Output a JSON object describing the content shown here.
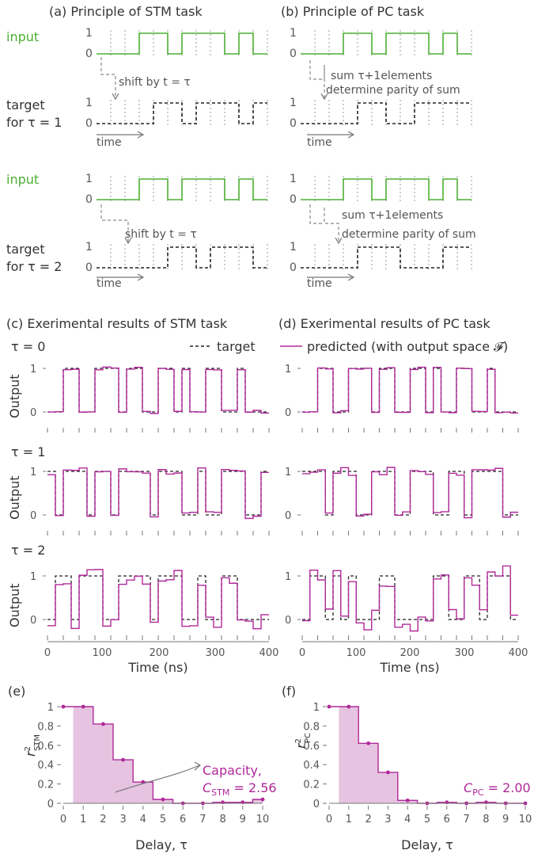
{
  "panel_a": {
    "title": "(a)  Principle of STM task",
    "input_label": "input",
    "target_label_1": "target",
    "target_label_1b": "for τ = 1",
    "target_label_2": "target",
    "target_label_2b": "for τ = 2",
    "shift_text": "shift by t = τ",
    "time_label": "time",
    "one": "1",
    "zero": "0"
  },
  "panel_b": {
    "title": "(b)  Principle of PC task",
    "sum_text": "sum τ+1elements",
    "parity_text": "determine parity of sum",
    "time_label": "time"
  },
  "colors": {
    "input": "#4caf32",
    "target": "#222222",
    "predicted": "#b0289a",
    "capacity_fill": "#e6c3e0"
  },
  "panel_c": {
    "title": "(c) Exerimental results of STM task"
  },
  "panel_d": {
    "title": "(d) Exerimental results of PC task"
  },
  "legend": {
    "target": "target",
    "predicted": "predicted (with output space 𝓕)"
  },
  "rows": [
    {
      "tau_label": "τ = 0"
    },
    {
      "tau_label": "τ = 1"
    },
    {
      "tau_label": "τ = 2"
    }
  ],
  "ylabel_output": "Output",
  "time_ticks": [
    "0",
    "100",
    "200",
    "300",
    "400"
  ],
  "time_xlabel": "Time (ns)",
  "panel_e": {
    "label": "(e)",
    "annotation_1": "Capacity,",
    "annotation_2": "C",
    "annotation_sub": "STM",
    "annotation_value": " = 2.56",
    "ylabel": "r",
    "ylabel_sub": "STM",
    "ylabel_sup": "2"
  },
  "panel_f": {
    "label": "(f)",
    "annotation_c": "C",
    "annotation_sub": "PC",
    "annotation_value": " = 2.00",
    "ylabel": "r",
    "ylabel_sub": "PC",
    "ylabel_sup": "2"
  },
  "delay_xlabel": "Delay, τ",
  "chart_data": [
    {
      "type": "line",
      "panel": "e",
      "x": [
        0,
        1,
        2,
        3,
        4,
        5,
        6,
        7,
        8,
        9,
        10
      ],
      "series": [
        {
          "values": [
            1.0,
            1.0,
            0.82,
            0.45,
            0.22,
            0.04,
            0.0,
            0.0,
            0.01,
            0.01,
            0.04
          ]
        }
      ],
      "xlabel": "Delay, τ",
      "ylim": [
        0,
        1
      ],
      "yticks": [
        "0",
        "0.2",
        "0.4",
        "0.6",
        "0.8",
        "1"
      ]
    },
    {
      "type": "line",
      "panel": "f",
      "x": [
        0,
        1,
        2,
        3,
        4,
        5,
        6,
        7,
        8,
        9,
        10
      ],
      "series": [
        {
          "values": [
            1.0,
            1.0,
            0.62,
            0.32,
            0.03,
            0.0,
            0.01,
            0.0,
            0.01,
            0.0,
            0.0
          ]
        }
      ],
      "xlabel": "Delay, τ",
      "ylim": [
        0,
        1
      ],
      "yticks": [
        "0",
        "0.2",
        "0.4",
        "0.6",
        "0.8",
        "1"
      ]
    },
    {
      "type": "line",
      "panel": "c",
      "x_axis": "Time (ns)",
      "series": [
        {
          "name": "target",
          "tau": 0,
          "values": [
            0,
            0,
            1,
            1,
            0,
            0,
            1,
            1,
            1,
            0,
            1,
            1,
            0,
            0,
            1,
            1,
            0,
            1,
            0,
            0,
            1,
            1,
            0,
            0,
            1,
            0,
            0,
            0
          ]
        },
        {
          "name": "target",
          "tau": 1,
          "values": [
            1,
            0,
            1,
            1,
            1,
            0,
            1,
            1,
            0,
            1,
            1,
            1,
            1,
            0,
            1,
            1,
            1,
            0,
            0,
            1,
            0,
            0,
            1,
            1,
            1,
            0,
            0,
            1
          ]
        },
        {
          "name": "target",
          "tau": 2,
          "values": [
            0,
            1,
            1,
            0,
            1,
            1,
            1,
            0,
            0,
            1,
            1,
            1,
            1,
            0,
            1,
            1,
            1,
            0,
            0,
            1,
            0,
            0,
            1,
            1,
            0,
            0,
            0,
            0
          ]
        }
      ]
    },
    {
      "type": "line",
      "panel": "d",
      "x_axis": "Time (ns)",
      "series": [
        {
          "name": "target",
          "tau": 0,
          "values": [
            0,
            0,
            1,
            1,
            0,
            0,
            1,
            1,
            1,
            0,
            1,
            1,
            0,
            0,
            1,
            1,
            0,
            1,
            0,
            0,
            1,
            1,
            0,
            0,
            1,
            0,
            0,
            0
          ]
        },
        {
          "name": "target",
          "tau": 1,
          "values": [
            1,
            1,
            1,
            0,
            1,
            1,
            1,
            0,
            0,
            1,
            1,
            1,
            0,
            0,
            1,
            1,
            1,
            0,
            0,
            1,
            1,
            0,
            1,
            1,
            1,
            1,
            0,
            0
          ]
        },
        {
          "name": "target",
          "tau": 2,
          "values": [
            0,
            1,
            1,
            0,
            1,
            0,
            1,
            0,
            0,
            0,
            1,
            1,
            0,
            0,
            0,
            0,
            0,
            1,
            1,
            0,
            0,
            1,
            1,
            0,
            1,
            1,
            1,
            0
          ]
        }
      ]
    }
  ]
}
